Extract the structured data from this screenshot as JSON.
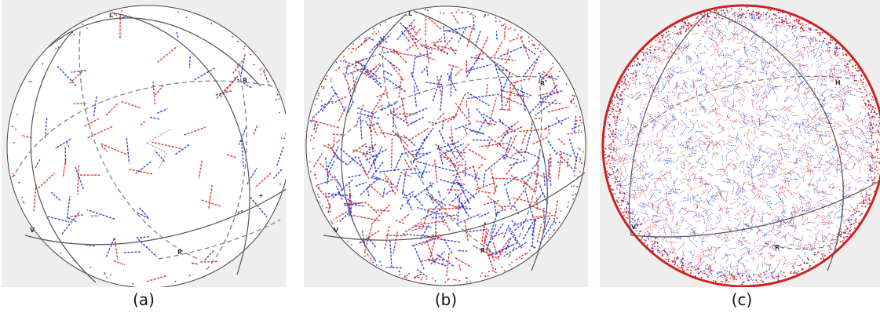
{
  "colors": {
    "background": "#eeeeee",
    "sphere_fill": "#ffffff",
    "sphere_outline": "#444444",
    "great_circle_solid": "#555555",
    "great_circle_dashed": "#777777",
    "track_red": "#dd2222",
    "track_blue": "#2233cc"
  },
  "panels": [
    {
      "caption": "(a)",
      "density": "sparse",
      "axis_labels": {
        "top": "L",
        "right": "R",
        "left": "V",
        "bottom": "R",
        "small_mark": "+"
      }
    },
    {
      "caption": "(b)",
      "density": "medium",
      "axis_labels": {
        "top": "L",
        "right": "R",
        "left": "V",
        "bottom": "R"
      }
    },
    {
      "caption": "(c)",
      "density": "dense",
      "axis_labels": {
        "top": "L",
        "right": "H",
        "left": "V",
        "bottom": "R"
      }
    }
  ]
}
